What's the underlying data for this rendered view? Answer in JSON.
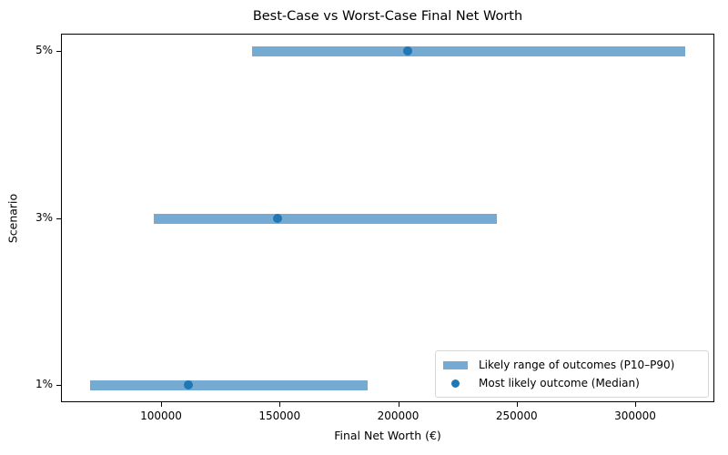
{
  "chart_data": {
    "type": "range_dot",
    "title": "Best-Case vs Worst-Case Final Net Worth",
    "xlabel": "Final Net Worth (€)",
    "ylabel": "Scenario",
    "categories": [
      "1%",
      "3%",
      "5%"
    ],
    "series": [
      {
        "name": "Likely range of outcomes (P10–P90)",
        "kind": "range",
        "low": [
          70000,
          97000,
          138500
        ],
        "high": [
          187000,
          241500,
          321000
        ]
      },
      {
        "name": "Most likely outcome (Median)",
        "kind": "point",
        "values": [
          111500,
          149000,
          204000
        ]
      }
    ],
    "xlim": [
      56000,
      336000
    ],
    "xticks": [
      100000,
      150000,
      200000,
      250000,
      300000
    ],
    "xtick_labels": [
      "100000",
      "150000",
      "200000",
      "250000",
      "300000"
    ],
    "legend_position": "lower right",
    "grid": false,
    "colors": {
      "range": "#75aad2",
      "median": "#1f77b4"
    }
  },
  "legend": {
    "range_label": "Likely range of outcomes (P10–P90)",
    "median_label": "Most likely outcome (Median)"
  }
}
